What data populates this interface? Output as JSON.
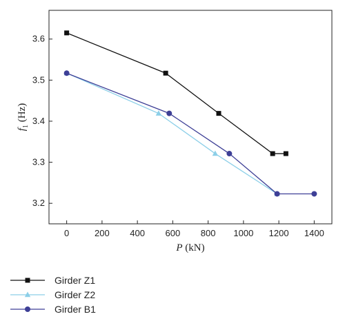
{
  "chart_data": {
    "type": "line",
    "xlabel": {
      "var": "P",
      "unit": " (kN)"
    },
    "ylabel": {
      "var": "f",
      "sub": "1",
      "unit": " (Hz)"
    },
    "xlim": [
      -100,
      1500
    ],
    "ylim": [
      3.15,
      3.67
    ],
    "xticks": [
      0,
      200,
      400,
      600,
      800,
      1000,
      1200,
      1400
    ],
    "yticks": [
      3.2,
      3.3,
      3.4,
      3.5,
      3.6
    ],
    "grid": false,
    "legend_position": "bottom-left, below plot",
    "series": [
      {
        "name": "Girder Z1",
        "marker": "square",
        "color": "#111111",
        "x": [
          0,
          560,
          860,
          1165,
          1240
        ],
        "y": [
          3.615,
          3.517,
          3.419,
          3.321,
          3.321
        ]
      },
      {
        "name": "Girder Z2",
        "marker": "triangle",
        "color": "#8ccfe8",
        "x": [
          0,
          520,
          840,
          1190
        ],
        "y": [
          3.517,
          3.419,
          3.321,
          3.223
        ]
      },
      {
        "name": "Girder B1",
        "marker": "circle",
        "color": "#3d3f96",
        "x": [
          0,
          580,
          920,
          1190,
          1400
        ],
        "y": [
          3.517,
          3.419,
          3.321,
          3.223,
          3.223
        ]
      }
    ]
  }
}
